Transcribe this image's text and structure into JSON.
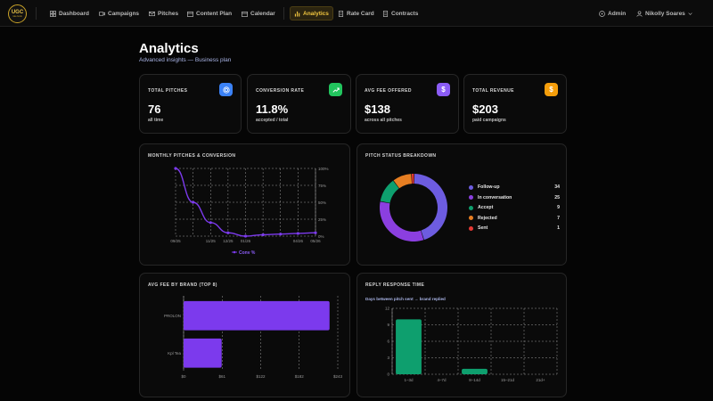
{
  "nav": {
    "logo_line1": "UGC",
    "logo_line2": "rate book",
    "items": [
      {
        "label": "Dashboard"
      },
      {
        "label": "Campaigns"
      },
      {
        "label": "Pitches"
      },
      {
        "label": "Content Plan"
      },
      {
        "label": "Calendar"
      },
      {
        "label": "Analytics",
        "active": true
      },
      {
        "label": "Rate Card"
      },
      {
        "label": "Contracts"
      }
    ],
    "admin_label": "Admin",
    "user_name": "Nikolly Soares"
  },
  "page": {
    "title": "Analytics",
    "subtitle": "Advanced insights — Business plan"
  },
  "stats": [
    {
      "label": "TOTAL PITCHES",
      "value": "76",
      "sub": "all time",
      "icon": "target-icon",
      "color": "#3b82f6"
    },
    {
      "label": "CONVERSION RATE",
      "value": "11.8%",
      "sub": "accepted / total",
      "icon": "trend-up-icon",
      "color": "#22c55e"
    },
    {
      "label": "AVG FEE OFFERED",
      "value": "$138",
      "sub": "across all pitches",
      "icon": "dollar-icon",
      "color": "#8b5cf6"
    },
    {
      "label": "TOTAL REVENUE",
      "value": "$203",
      "sub": "paid campaigns",
      "icon": "dollar-icon",
      "color": "#f59e0b"
    }
  ],
  "panels": {
    "monthly_title": "MONTHLY PITCHES & CONVERSION",
    "status_title": "PITCH STATUS BREAKDOWN",
    "fee_title": "AVG FEE BY BRAND (TOP 8)",
    "reply_title": "REPLY RESPONSE TIME",
    "reply_sub": "Days between pitch sent → brand replied"
  },
  "chart_data": [
    {
      "type": "line",
      "title": "MONTHLY PITCHES & CONVERSION",
      "x": [
        "09/25",
        "10/25",
        "11/25",
        "12/25",
        "01/26",
        "02/26",
        "03/26",
        "04/26",
        "05/26"
      ],
      "x_tick_labels": [
        "09/25",
        "11/25",
        "12/25",
        "01/26",
        "04/26",
        "05/26"
      ],
      "series": [
        {
          "name": "Conv %",
          "values": [
            100,
            50,
            20,
            5,
            0,
            2,
            3,
            4,
            5
          ],
          "color": "#7c3aed"
        }
      ],
      "ylim": [
        0,
        100
      ],
      "y_ticks": [
        "0%",
        "25%",
        "50%",
        "75%",
        "100%"
      ],
      "axis": "right",
      "grid": true,
      "legend": "bottom"
    },
    {
      "type": "pie",
      "title": "PITCH STATUS BREAKDOWN",
      "donut": true,
      "slices": [
        {
          "label": "Follow-up",
          "value": 34,
          "color": "#6d5ce0"
        },
        {
          "label": "In conversation",
          "value": 25,
          "color": "#8b3fe0"
        },
        {
          "label": "Accept",
          "value": 9,
          "color": "#0e9f6e"
        },
        {
          "label": "Rejected",
          "value": 7,
          "color": "#e67e22"
        },
        {
          "label": "Sent",
          "value": 1,
          "color": "#e53935"
        }
      ],
      "legend": "right"
    },
    {
      "type": "bar",
      "orientation": "horizontal",
      "title": "AVG FEE BY BRAND (TOP 8)",
      "categories": [
        "PROLON",
        "Kpl Tea"
      ],
      "values": [
        230,
        60
      ],
      "xlim": [
        0,
        243
      ],
      "x_ticks": [
        "$0",
        "$61",
        "$122",
        "$182",
        "$243"
      ],
      "color": "#7c3aed",
      "grid": true
    },
    {
      "type": "bar",
      "title": "REPLY RESPONSE TIME",
      "subtitle": "Days between pitch sent → brand replied",
      "categories": [
        "1–3d",
        "4–7d",
        "8–14d",
        "15–21d",
        "21d+"
      ],
      "values": [
        10,
        0,
        1,
        0,
        0
      ],
      "ylim": [
        0,
        12
      ],
      "y_ticks": [
        "0",
        "3",
        "6",
        "9",
        "12"
      ],
      "color": "#0e9f6e",
      "grid": true
    }
  ]
}
